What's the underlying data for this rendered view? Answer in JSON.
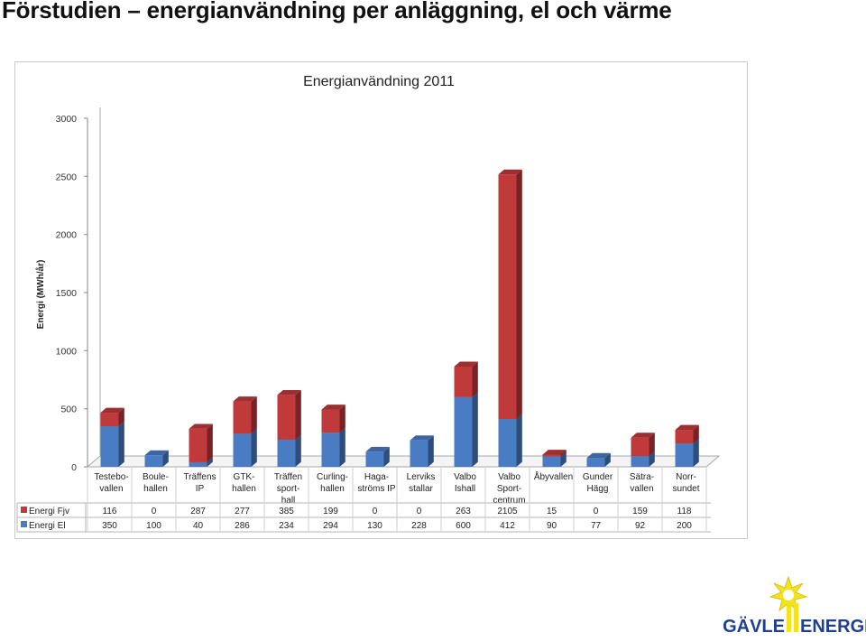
{
  "page": {
    "title": "Förstudien – energianvändning per anläggning, el och värme"
  },
  "logo": {
    "text_left": "GÄVLE",
    "text_right": "ENERGI"
  },
  "chart_data": {
    "type": "bar",
    "stacked": true,
    "three_d": true,
    "title": "Energianvändning 2011",
    "ylabel": "Energi (MWh/år)",
    "xlabel": "",
    "ylim": [
      0,
      3000
    ],
    "yticks": [
      0,
      500,
      1000,
      1500,
      2000,
      2500,
      3000
    ],
    "grid": false,
    "legend": "data-table-left",
    "categories": [
      [
        "Testebo-",
        "vallen"
      ],
      [
        "Boule-",
        "hallen"
      ],
      [
        "Träffens",
        "IP"
      ],
      [
        "GTK-",
        "hallen"
      ],
      [
        "Träffen",
        "sport-",
        "hall"
      ],
      [
        "Curling-",
        "hallen"
      ],
      [
        "Haga-",
        "ströms IP"
      ],
      [
        "Lerviks",
        "stallar"
      ],
      [
        "Valbo",
        "Ishall"
      ],
      [
        "Valbo",
        "Sport-",
        "centrum"
      ],
      [
        "Åbyvallen"
      ],
      [
        "Gunder",
        "Hägg"
      ],
      [
        "Sätra-",
        "vallen"
      ],
      [
        "Norr-",
        "sundet"
      ]
    ],
    "series": [
      {
        "name": "Energi Fjv",
        "color": "#c0393b",
        "values": [
          116,
          0,
          287,
          277,
          385,
          199,
          0,
          0,
          263,
          2105,
          15,
          0,
          159,
          118
        ]
      },
      {
        "name": "Energi El",
        "color": "#4a7cc4",
        "values": [
          350,
          100,
          40,
          286,
          234,
          294,
          130,
          228,
          600,
          412,
          90,
          77,
          92,
          200
        ]
      }
    ]
  }
}
